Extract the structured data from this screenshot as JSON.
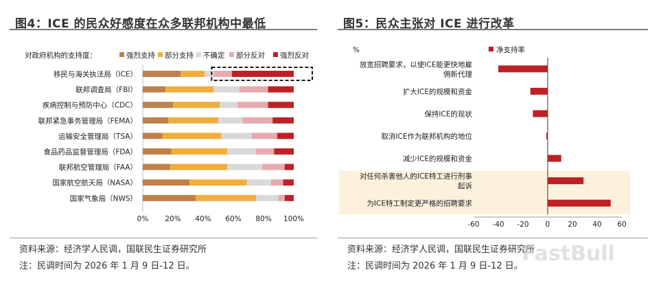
{
  "left_panel": {
    "title": "图4：ICE 的民众好感度在众多联邦机构中最低",
    "source": "资料来源：经济学人民调，国联民生证券研究所",
    "note": "注：民调时间为 2026 年 1 月 9 日-12 日。"
  },
  "right_panel": {
    "title": "图5：民众主张对 ICE 进行改革",
    "source": "资料来源：经济学人民调，国联民生证券研究所",
    "note": "注：民调时间为 2026 年 1 月 9 日-12 日。"
  },
  "watermark": "FastBull",
  "colors": {
    "strong_support": "#C0804A",
    "some_support": "#F0AE3C",
    "unsure": "#D9D9D9",
    "some_oppose": "#E7AAAE",
    "strong_oppose": "#BE2026",
    "net_support": "#BE2026",
    "highlight_bg": "#FBF1DC"
  },
  "chart_data": [
    {
      "type": "bar",
      "orientation": "horizontal",
      "stacked": true,
      "legend_title": "对政府机构的支持度：",
      "legend_position": "top",
      "categories": [
        "移民与海关执法局（ICE）",
        "联邦调查局（FBI）",
        "疾病控制与预防中心（CDC）",
        "联邦紧急事务管理局（FEMA）",
        "运输安全管理局（TSA）",
        "食品药品监督管理局（FDA）",
        "联邦航空管理局（FAA）",
        "国家航空航天局（NASA）",
        "国家气象局（NWS）"
      ],
      "series": [
        {
          "name": "强烈支持",
          "values": [
            25,
            15,
            20,
            17,
            13,
            19,
            18,
            31,
            35
          ]
        },
        {
          "name": "部分支持",
          "values": [
            16,
            32,
            31,
            33,
            39,
            37,
            38,
            38,
            40
          ]
        },
        {
          "name": "不确定",
          "values": [
            6,
            17,
            12,
            16,
            20,
            19,
            23,
            16,
            15
          ]
        },
        {
          "name": "部分反对",
          "values": [
            12,
            19,
            20,
            20,
            17,
            12,
            15,
            8,
            4
          ]
        },
        {
          "name": "强烈反对",
          "values": [
            41,
            17,
            17,
            14,
            11,
            13,
            6,
            7,
            6
          ]
        }
      ],
      "xlim": [
        0,
        100
      ],
      "xticks": [
        "0%",
        "20%",
        "40%",
        "60%",
        "80%",
        "100%"
      ],
      "highlight_category": 0
    },
    {
      "type": "bar",
      "orientation": "horizontal",
      "yaxis_unit": "%",
      "legend_position": "top",
      "categories": [
        "放宽招聘要求，以使ICE能更快地雇佣新代理",
        "扩大ICE的规模和资金",
        "保持ICE的现状",
        "取消ICE作为联邦机构的地位",
        "减少ICE的规模和资金",
        "对任何杀害他人的ICE特工进行刑事起诉",
        "为ICE特工制定更严格的招聘要求"
      ],
      "series": [
        {
          "name": "净支持率",
          "values": [
            -40,
            -14,
            -12,
            -1,
            11,
            29,
            51
          ]
        }
      ],
      "xlim": [
        -60,
        60
      ],
      "xticks": [
        -60,
        -40,
        -20,
        0,
        20,
        40,
        60
      ],
      "highlighted_categories": [
        5,
        6
      ]
    }
  ]
}
